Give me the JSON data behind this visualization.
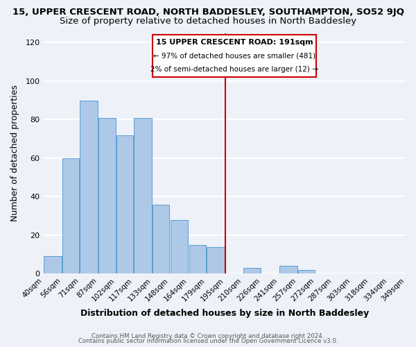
{
  "title1": "15, UPPER CRESCENT ROAD, NORTH BADDESLEY, SOUTHAMPTON, SO52 9JQ",
  "title2": "Size of property relative to detached houses in North Baddesley",
  "xlabel": "Distribution of detached houses by size in North Baddesley",
  "ylabel": "Number of detached properties",
  "bar_left_edges": [
    40,
    56,
    71,
    87,
    102,
    117,
    133,
    148,
    164,
    179,
    195,
    210,
    226,
    241,
    257,
    272,
    287,
    303,
    318,
    334
  ],
  "bar_widths": [
    16,
    15,
    16,
    15,
    15,
    16,
    15,
    16,
    15,
    16,
    15,
    16,
    15,
    16,
    15,
    15,
    16,
    15,
    16,
    15
  ],
  "bar_heights": [
    9,
    60,
    90,
    81,
    72,
    81,
    36,
    28,
    15,
    14,
    0,
    3,
    0,
    4,
    2,
    0,
    0,
    0,
    0,
    0
  ],
  "bar_color": "#aec8e8",
  "bar_edgecolor": "#5a9fd4",
  "tick_labels": [
    "40sqm",
    "56sqm",
    "71sqm",
    "87sqm",
    "102sqm",
    "117sqm",
    "133sqm",
    "148sqm",
    "164sqm",
    "179sqm",
    "195sqm",
    "210sqm",
    "226sqm",
    "241sqm",
    "257sqm",
    "272sqm",
    "287sqm",
    "303sqm",
    "318sqm",
    "334sqm",
    "349sqm"
  ],
  "vline_x": 195,
  "vline_color": "#cc0000",
  "ylim": [
    0,
    125
  ],
  "yticks": [
    0,
    20,
    40,
    60,
    80,
    100,
    120
  ],
  "annotation_title": "15 UPPER CRESCENT ROAD: 191sqm",
  "annotation_line1": "← 97% of detached houses are smaller (481)",
  "annotation_line2": "2% of semi-detached houses are larger (12) →",
  "footer_line1": "Contains HM Land Registry data © Crown copyright and database right 2024.",
  "footer_line2": "Contains public sector information licensed under the Open Government Licence v3.0.",
  "bg_color": "#eef2f8",
  "grid_color": "#ffffff",
  "title1_fontsize": 9.5,
  "title2_fontsize": 9.5,
  "axis_label_fontsize": 9.0,
  "tick_fontsize": 7.5,
  "footer_fontsize": 6.2,
  "annot_fontsize_title": 8.0,
  "annot_fontsize_body": 7.5
}
